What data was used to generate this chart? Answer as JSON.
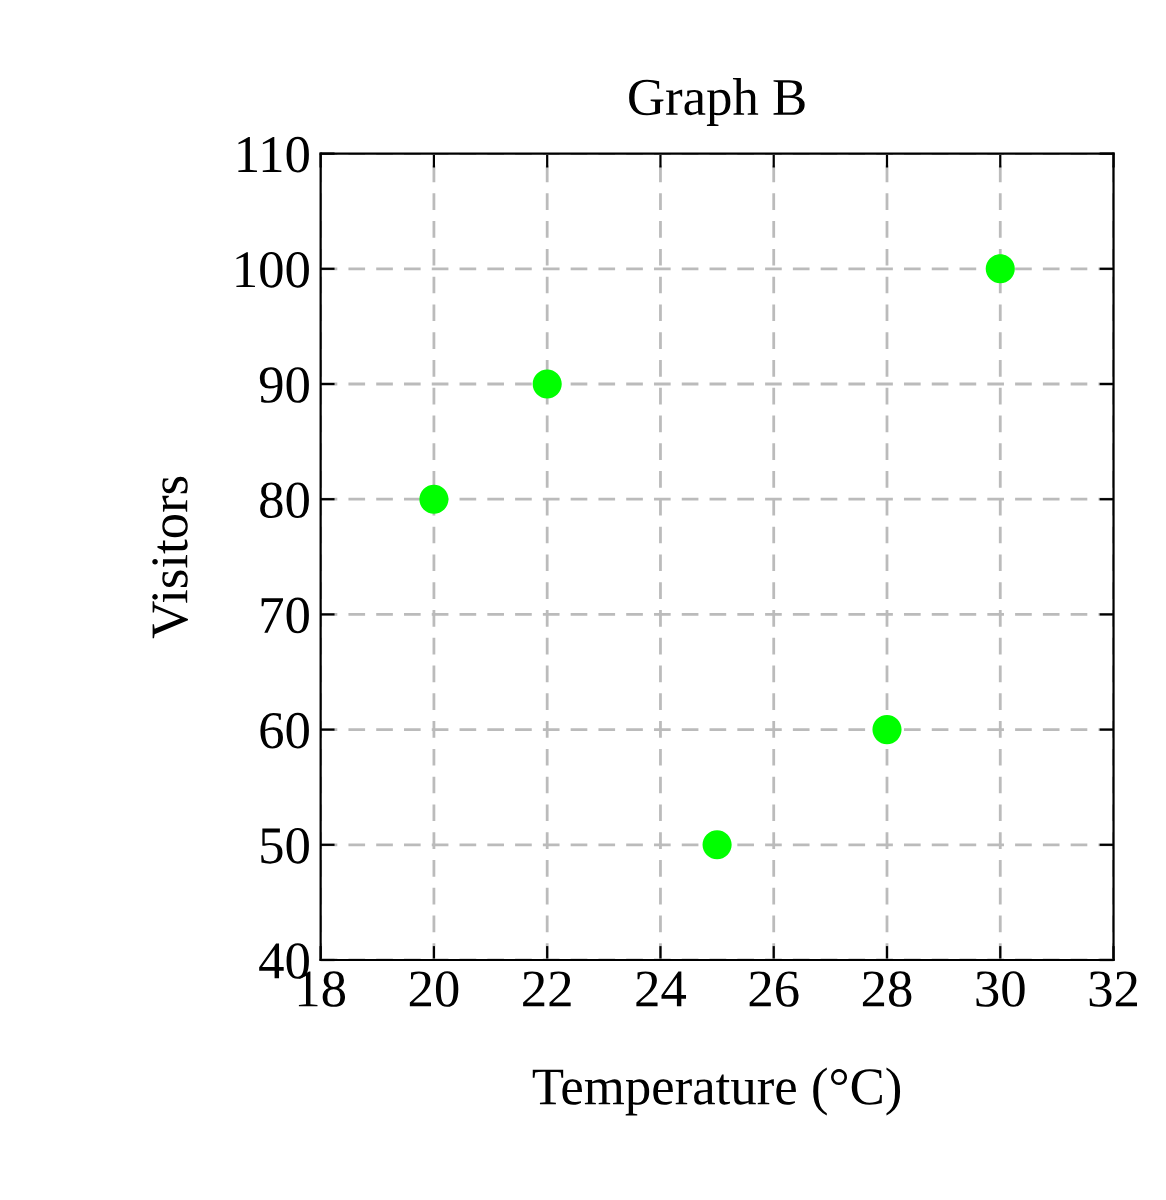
{
  "chart_data": {
    "type": "scatter",
    "title": "Graph B",
    "xlabel": "Temperature (°C)",
    "ylabel": "Visitors",
    "x": [
      20,
      22,
      25,
      28,
      30
    ],
    "series": [
      {
        "color": "#00ff00",
        "values": [
          80,
          90,
          50,
          60,
          100
        ]
      }
    ],
    "xlim": [
      18,
      32
    ],
    "xticks": [
      18,
      20,
      22,
      24,
      26,
      28,
      30,
      32
    ],
    "ylim": [
      40,
      110
    ],
    "yticks": [
      40,
      50,
      60,
      70,
      80,
      90,
      100,
      110
    ],
    "grid": true,
    "marker": "circle",
    "legend": false
  }
}
